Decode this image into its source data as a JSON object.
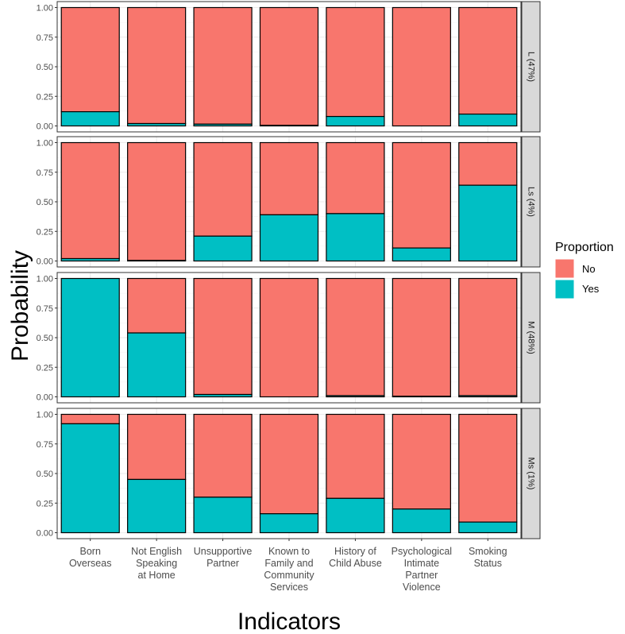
{
  "chart_data": {
    "type": "bar",
    "stacked": true,
    "ylabel": "Probability",
    "xlabel": "Indicators",
    "ylim": [
      0,
      1
    ],
    "yticks": [
      "0.00",
      "0.25",
      "0.50",
      "0.75",
      "1.00"
    ],
    "grid": true,
    "legend": {
      "title": "Proportion",
      "position": "right",
      "entries": [
        {
          "label": "No",
          "color": "#F8766D"
        },
        {
          "label": "Yes",
          "color": "#00BFC4"
        }
      ]
    },
    "categories": [
      [
        "Born",
        "Overseas"
      ],
      [
        "Not English",
        "Speaking",
        "at Home"
      ],
      [
        "Unsupportive",
        "Partner"
      ],
      [
        "Known to",
        "Family and",
        "Community",
        "Services"
      ],
      [
        "History of",
        "Child Abuse"
      ],
      [
        "Psychological",
        "Intimate",
        "Partner",
        "Violence"
      ],
      [
        "Smoking",
        "Status"
      ]
    ],
    "panels": [
      {
        "label": "L (47%)",
        "yes": [
          0.12,
          0.02,
          0.015,
          0.005,
          0.08,
          0.0,
          0.1
        ]
      },
      {
        "label": "Ls (4%)",
        "yes": [
          0.02,
          0.005,
          0.21,
          0.39,
          0.4,
          0.11,
          0.64
        ]
      },
      {
        "label": "M (48%)",
        "yes": [
          1.0,
          0.54,
          0.02,
          0.0,
          0.01,
          0.005,
          0.01
        ]
      },
      {
        "label": "Ms (1%)",
        "yes": [
          0.92,
          0.45,
          0.3,
          0.16,
          0.29,
          0.2,
          0.09
        ]
      }
    ]
  }
}
